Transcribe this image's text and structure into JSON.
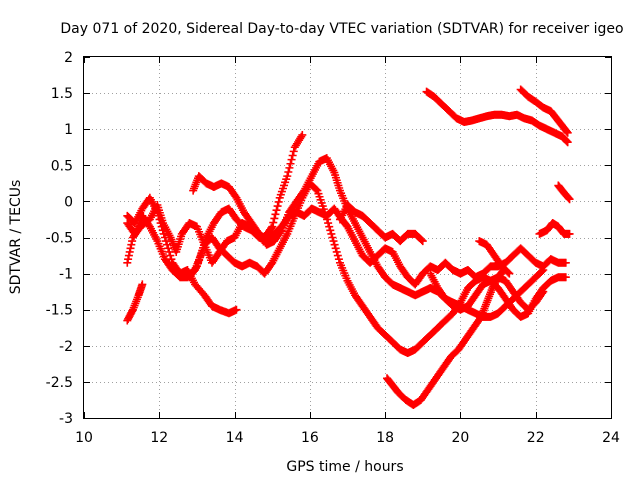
{
  "chart_data": {
    "type": "scatter",
    "marker": "plus",
    "title": "Day 071 of 2020, Sidereal Day-to-day VTEC variation (SDTVAR) for receiver igeo",
    "xlabel": "GPS time / hours",
    "ylabel": "SDTVAR / TECUs",
    "xlim": [
      10,
      24
    ],
    "ylim": [
      -3,
      2
    ],
    "grid": true,
    "x_ticks": [
      10,
      12,
      14,
      16,
      18,
      20,
      22,
      24
    ],
    "y_ticks": [
      -3,
      -2.5,
      -2,
      -1.5,
      -1,
      -0.5,
      0,
      0.5,
      1,
      1.5,
      2
    ],
    "x_tick_labels": [
      "10",
      "12",
      "14",
      "16",
      "18",
      "20",
      "22",
      "24"
    ],
    "y_tick_labels": [
      "-3",
      "-2.5",
      "-2",
      "-1.5",
      "-1",
      "-0.5",
      "0",
      "0.5",
      "1",
      "1.5",
      "2"
    ],
    "series_color": "#ff0000",
    "series": [
      {
        "name": "track-1",
        "points": [
          [
            11.15,
            -1.65
          ],
          [
            11.3,
            -1.5
          ],
          [
            11.45,
            -1.3
          ],
          [
            11.55,
            -1.15
          ]
        ]
      },
      {
        "name": "track-2",
        "points": [
          [
            11.15,
            -0.85
          ],
          [
            11.3,
            -0.5
          ],
          [
            11.5,
            -0.35
          ],
          [
            11.75,
            -0.25
          ],
          [
            11.95,
            -0.05
          ],
          [
            12.1,
            -0.3
          ],
          [
            12.3,
            -0.5
          ],
          [
            12.45,
            -0.7
          ],
          [
            12.6,
            -0.45
          ],
          [
            12.8,
            -0.3
          ],
          [
            13.0,
            -0.35
          ],
          [
            13.2,
            -0.6
          ],
          [
            13.4,
            -0.85
          ],
          [
            13.6,
            -0.7
          ],
          [
            13.8,
            -0.55
          ],
          [
            14.0,
            -0.5
          ],
          [
            14.2,
            -0.3
          ],
          [
            14.4,
            -0.35
          ],
          [
            14.6,
            -0.45
          ],
          [
            14.8,
            -0.5
          ],
          [
            15.0,
            -0.35
          ],
          [
            15.2,
            0.05
          ],
          [
            15.4,
            0.35
          ],
          [
            15.6,
            0.75
          ],
          [
            15.8,
            0.92
          ]
        ]
      },
      {
        "name": "track-3",
        "points": [
          [
            11.15,
            -0.2
          ],
          [
            11.35,
            -0.3
          ],
          [
            11.55,
            -0.1
          ],
          [
            11.75,
            0.05
          ],
          [
            11.95,
            -0.15
          ],
          [
            12.15,
            -0.5
          ],
          [
            12.35,
            -0.85
          ],
          [
            12.55,
            -1.0
          ],
          [
            12.75,
            -0.95
          ],
          [
            12.95,
            -1.15
          ],
          [
            13.2,
            -1.3
          ],
          [
            13.4,
            -1.45
          ],
          [
            13.6,
            -1.5
          ],
          [
            13.85,
            -1.55
          ],
          [
            14.05,
            -1.5
          ]
        ]
      },
      {
        "name": "track-4",
        "points": [
          [
            11.15,
            -0.3
          ],
          [
            11.35,
            -0.45
          ],
          [
            11.55,
            -0.2
          ],
          [
            11.75,
            -0.35
          ],
          [
            11.95,
            -0.55
          ],
          [
            12.15,
            -0.8
          ],
          [
            12.35,
            -0.95
          ],
          [
            12.55,
            -1.05
          ],
          [
            12.75,
            -1.05
          ],
          [
            12.95,
            -0.95
          ],
          [
            13.1,
            -0.75
          ],
          [
            13.25,
            -0.5
          ],
          [
            13.45,
            -0.3
          ],
          [
            13.65,
            -0.15
          ],
          [
            13.85,
            -0.1
          ],
          [
            14.05,
            -0.25
          ],
          [
            14.25,
            -0.35
          ],
          [
            14.45,
            -0.4
          ],
          [
            14.65,
            -0.5
          ],
          [
            14.85,
            -0.55
          ],
          [
            15.05,
            -0.45
          ],
          [
            15.25,
            -0.35
          ],
          [
            15.45,
            -0.2
          ],
          [
            15.65,
            -0.15
          ],
          [
            15.85,
            -0.2
          ],
          [
            16.05,
            -0.1
          ],
          [
            16.25,
            -0.15
          ],
          [
            16.45,
            -0.2
          ],
          [
            16.65,
            -0.1
          ],
          [
            16.85,
            -0.25
          ],
          [
            17.0,
            -0.35
          ],
          [
            17.2,
            -0.55
          ],
          [
            17.4,
            -0.75
          ],
          [
            17.6,
            -0.85
          ],
          [
            17.8,
            -0.75
          ],
          [
            18.0,
            -0.65
          ],
          [
            18.2,
            -0.7
          ],
          [
            18.4,
            -0.9
          ],
          [
            18.6,
            -1.05
          ],
          [
            18.8,
            -1.15
          ],
          [
            19.0,
            -1.0
          ],
          [
            19.2,
            -0.9
          ],
          [
            19.4,
            -0.95
          ],
          [
            19.6,
            -0.85
          ],
          [
            19.8,
            -0.95
          ],
          [
            20.0,
            -1.0
          ],
          [
            20.2,
            -0.95
          ],
          [
            20.4,
            -1.05
          ],
          [
            20.6,
            -1.0
          ],
          [
            20.8,
            -0.9
          ],
          [
            21.0,
            -0.9
          ],
          [
            21.2,
            -0.85
          ],
          [
            21.4,
            -0.75
          ],
          [
            21.6,
            -0.65
          ],
          [
            21.8,
            -0.75
          ],
          [
            22.0,
            -0.85
          ],
          [
            22.2,
            -0.9
          ],
          [
            22.4,
            -0.8
          ],
          [
            22.6,
            -0.85
          ],
          [
            22.8,
            -0.85
          ]
        ]
      },
      {
        "name": "track-5",
        "points": [
          [
            12.8,
            -1.05
          ],
          [
            13.0,
            -0.9
          ],
          [
            13.2,
            -0.6
          ],
          [
            13.4,
            -0.5
          ],
          [
            13.6,
            -0.65
          ],
          [
            13.8,
            -0.75
          ],
          [
            14.0,
            -0.85
          ],
          [
            14.2,
            -0.9
          ],
          [
            14.4,
            -0.85
          ],
          [
            14.6,
            -0.9
          ],
          [
            14.8,
            -1.0
          ],
          [
            15.0,
            -0.85
          ],
          [
            15.2,
            -0.65
          ],
          [
            15.4,
            -0.45
          ],
          [
            15.6,
            -0.2
          ],
          [
            15.8,
            0.05
          ],
          [
            16.0,
            0.25
          ],
          [
            16.2,
            0.15
          ],
          [
            16.4,
            -0.15
          ],
          [
            16.6,
            -0.5
          ],
          [
            16.8,
            -0.85
          ],
          [
            17.0,
            -1.1
          ],
          [
            17.2,
            -1.3
          ],
          [
            17.4,
            -1.45
          ],
          [
            17.6,
            -1.6
          ],
          [
            17.8,
            -1.75
          ],
          [
            18.0,
            -1.85
          ],
          [
            18.2,
            -1.95
          ],
          [
            18.4,
            -2.05
          ],
          [
            18.6,
            -2.1
          ],
          [
            18.8,
            -2.05
          ],
          [
            19.0,
            -1.95
          ],
          [
            19.2,
            -1.85
          ],
          [
            19.4,
            -1.75
          ],
          [
            19.6,
            -1.65
          ],
          [
            19.8,
            -1.55
          ],
          [
            20.0,
            -1.4
          ],
          [
            20.2,
            -1.2
          ],
          [
            20.4,
            -1.1
          ],
          [
            20.6,
            -1.05
          ],
          [
            20.8,
            -1.1
          ],
          [
            21.0,
            -1.2
          ],
          [
            21.2,
            -1.35
          ],
          [
            21.4,
            -1.5
          ],
          [
            21.6,
            -1.6
          ],
          [
            21.8,
            -1.55
          ],
          [
            22.0,
            -1.35
          ],
          [
            22.2,
            -1.2
          ],
          [
            22.4,
            -1.1
          ],
          [
            22.6,
            -1.05
          ],
          [
            22.8,
            -1.05
          ]
        ]
      },
      {
        "name": "track-6",
        "points": [
          [
            12.9,
            0.15
          ],
          [
            13.05,
            0.35
          ],
          [
            13.25,
            0.25
          ],
          [
            13.45,
            0.2
          ],
          [
            13.65,
            0.25
          ],
          [
            13.85,
            0.2
          ],
          [
            14.05,
            0.05
          ],
          [
            14.25,
            -0.15
          ],
          [
            14.45,
            -0.3
          ],
          [
            14.65,
            -0.45
          ],
          [
            14.85,
            -0.6
          ],
          [
            15.05,
            -0.55
          ],
          [
            15.25,
            -0.4
          ],
          [
            15.45,
            -0.15
          ],
          [
            15.65,
            0.0
          ],
          [
            15.85,
            0.15
          ],
          [
            16.05,
            0.35
          ],
          [
            16.25,
            0.55
          ],
          [
            16.45,
            0.6
          ],
          [
            16.65,
            0.4
          ],
          [
            16.8,
            0.15
          ],
          [
            17.0,
            -0.1
          ],
          [
            17.2,
            -0.3
          ],
          [
            17.4,
            -0.5
          ],
          [
            17.6,
            -0.7
          ],
          [
            17.8,
            -0.9
          ],
          [
            18.0,
            -1.05
          ],
          [
            18.2,
            -1.15
          ],
          [
            18.4,
            -1.2
          ],
          [
            18.6,
            -1.25
          ],
          [
            18.8,
            -1.3
          ],
          [
            19.0,
            -1.25
          ],
          [
            19.2,
            -1.2
          ],
          [
            19.4,
            -1.25
          ],
          [
            19.6,
            -1.35
          ],
          [
            19.8,
            -1.4
          ],
          [
            20.0,
            -1.45
          ],
          [
            20.2,
            -1.5
          ],
          [
            20.4,
            -1.55
          ],
          [
            20.6,
            -1.6
          ],
          [
            20.8,
            -1.6
          ],
          [
            21.0,
            -1.55
          ],
          [
            21.2,
            -1.45
          ],
          [
            21.4,
            -1.35
          ],
          [
            21.6,
            -1.25
          ],
          [
            21.8,
            -1.15
          ],
          [
            22.0,
            -1.05
          ],
          [
            22.2,
            -0.95
          ]
        ]
      },
      {
        "name": "track-7",
        "points": [
          [
            16.8,
            -0.25
          ],
          [
            17.0,
            -0.05
          ],
          [
            17.2,
            -0.15
          ],
          [
            17.4,
            -0.2
          ],
          [
            17.6,
            -0.3
          ],
          [
            17.8,
            -0.4
          ],
          [
            18.0,
            -0.5
          ],
          [
            18.2,
            -0.45
          ],
          [
            18.4,
            -0.55
          ],
          [
            18.6,
            -0.45
          ],
          [
            18.8,
            -0.45
          ],
          [
            19.0,
            -0.55
          ]
        ]
      },
      {
        "name": "track-8",
        "points": [
          [
            18.05,
            -2.45
          ],
          [
            18.2,
            -2.55
          ],
          [
            18.35,
            -2.65
          ],
          [
            18.55,
            -2.75
          ],
          [
            18.75,
            -2.82
          ],
          [
            18.95,
            -2.75
          ],
          [
            19.15,
            -2.6
          ],
          [
            19.35,
            -2.45
          ],
          [
            19.55,
            -2.3
          ],
          [
            19.75,
            -2.15
          ],
          [
            19.95,
            -2.05
          ],
          [
            20.15,
            -1.9
          ],
          [
            20.35,
            -1.75
          ],
          [
            20.55,
            -1.6
          ],
          [
            20.7,
            -1.4
          ],
          [
            20.85,
            -1.2
          ],
          [
            21.0,
            -1.05
          ],
          [
            21.15,
            -0.95
          ]
        ]
      },
      {
        "name": "track-9",
        "points": [
          [
            19.2,
            -1.0
          ],
          [
            19.4,
            -1.2
          ],
          [
            19.6,
            -1.35
          ],
          [
            19.8,
            -1.45
          ],
          [
            20.0,
            -1.5
          ],
          [
            20.2,
            -1.45
          ],
          [
            20.4,
            -1.3
          ],
          [
            20.6,
            -1.15
          ],
          [
            20.8,
            -1.1
          ],
          [
            21.0,
            -1.05
          ],
          [
            21.2,
            -1.1
          ],
          [
            21.4,
            -1.25
          ],
          [
            21.6,
            -1.4
          ],
          [
            21.8,
            -1.5
          ],
          [
            22.0,
            -1.4
          ],
          [
            22.2,
            -1.25
          ]
        ]
      },
      {
        "name": "track-10",
        "points": [
          [
            20.5,
            -0.55
          ],
          [
            20.7,
            -0.6
          ],
          [
            20.9,
            -0.75
          ],
          [
            21.1,
            -0.9
          ],
          [
            21.3,
            -1.0
          ]
        ]
      },
      {
        "name": "track-11",
        "points": [
          [
            19.1,
            1.52
          ],
          [
            19.3,
            1.45
          ],
          [
            19.5,
            1.35
          ],
          [
            19.7,
            1.25
          ],
          [
            19.9,
            1.15
          ],
          [
            20.1,
            1.1
          ],
          [
            20.3,
            1.12
          ],
          [
            20.5,
            1.15
          ],
          [
            20.7,
            1.18
          ],
          [
            20.9,
            1.2
          ],
          [
            21.1,
            1.2
          ],
          [
            21.3,
            1.18
          ],
          [
            21.5,
            1.2
          ],
          [
            21.7,
            1.15
          ],
          [
            21.9,
            1.12
          ],
          [
            22.1,
            1.05
          ],
          [
            22.3,
            1.0
          ],
          [
            22.5,
            0.95
          ],
          [
            22.7,
            0.9
          ],
          [
            22.85,
            0.82
          ]
        ]
      },
      {
        "name": "track-12",
        "points": [
          [
            21.6,
            1.55
          ],
          [
            21.8,
            1.45
          ],
          [
            22.0,
            1.38
          ],
          [
            22.2,
            1.3
          ],
          [
            22.4,
            1.25
          ],
          [
            22.55,
            1.15
          ],
          [
            22.7,
            1.05
          ],
          [
            22.85,
            0.95
          ]
        ]
      },
      {
        "name": "track-13",
        "points": [
          [
            22.1,
            -0.45
          ],
          [
            22.3,
            -0.4
          ],
          [
            22.45,
            -0.3
          ],
          [
            22.6,
            -0.35
          ],
          [
            22.75,
            -0.45
          ],
          [
            22.9,
            -0.45
          ]
        ]
      },
      {
        "name": "track-14",
        "points": [
          [
            22.6,
            0.22
          ],
          [
            22.75,
            0.12
          ],
          [
            22.9,
            0.03
          ]
        ]
      }
    ]
  }
}
